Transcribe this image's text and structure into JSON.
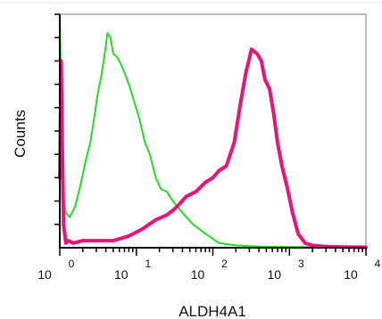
{
  "chart_data": {
    "type": "line",
    "title": "",
    "xlabel": "ALDH4A1",
    "ylabel": "Counts",
    "x_scale": "log",
    "xlim": [
      1,
      10000
    ],
    "ylim": [
      0,
      100
    ],
    "grid": false,
    "legend": "none",
    "x_tick_labels": [
      {
        "value": 1,
        "base": "10",
        "exp": "0"
      },
      {
        "value": 10,
        "base": "10",
        "exp": "1"
      },
      {
        "value": 100,
        "base": "10",
        "exp": "2"
      },
      {
        "value": 1000,
        "base": "10",
        "exp": "3"
      },
      {
        "value": 10000,
        "base": "10",
        "exp": "4"
      }
    ],
    "series": [
      {
        "color": "#22dd22",
        "x": [
          1.0,
          1.05,
          1.1,
          1.2,
          1.35,
          1.6,
          1.9,
          2.2,
          2.5,
          2.8,
          3.1,
          3.5,
          3.9,
          4.2,
          4.6,
          5.0,
          5.5,
          6.0,
          7.0,
          8.0,
          9.5,
          11,
          13,
          15,
          18,
          21,
          25,
          30,
          40,
          55,
          80,
          120,
          200,
          400,
          1000,
          10000
        ],
        "y": [
          100,
          55,
          20,
          15,
          13,
          18,
          28,
          38,
          45,
          55,
          65,
          74,
          84,
          92,
          90,
          83,
          82,
          80,
          75,
          70,
          62,
          55,
          45,
          40,
          30,
          25,
          24,
          20,
          15,
          10,
          6,
          2,
          1,
          0.5,
          0.3,
          0.2
        ]
      },
      {
        "color": "#ee1177",
        "x": [
          1.0,
          1.04,
          1.08,
          1.12,
          1.2,
          1.3,
          1.5,
          2,
          3,
          5,
          8,
          12,
          18,
          25,
          30,
          35,
          45,
          60,
          80,
          100,
          120,
          150,
          190,
          230,
          270,
          320,
          380,
          430,
          480,
          550,
          620,
          700,
          800,
          950,
          1100,
          1300,
          1600,
          2000,
          3000,
          5000,
          10000
        ],
        "y": [
          30,
          80,
          40,
          10,
          2,
          3,
          2,
          3,
          3,
          3,
          5,
          8,
          12,
          14,
          16,
          18,
          22,
          24,
          28,
          30,
          33,
          35,
          45,
          62,
          75,
          85,
          83,
          80,
          72,
          68,
          58,
          45,
          35,
          25,
          15,
          6,
          2,
          1,
          0.5,
          0.3,
          0.2
        ]
      }
    ]
  }
}
